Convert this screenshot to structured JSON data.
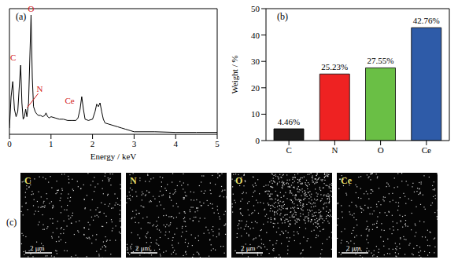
{
  "chart_data": [
    {
      "type": "line",
      "panel": "(a)",
      "x_label": "Energy / keV",
      "x": [
        0,
        0.04,
        0.08,
        0.12,
        0.16,
        0.2,
        0.24,
        0.27,
        0.3,
        0.33,
        0.36,
        0.39,
        0.42,
        0.46,
        0.49,
        0.52,
        0.55,
        0.58,
        0.62,
        0.66,
        0.7,
        0.75,
        0.8,
        0.85,
        0.88,
        0.92,
        0.96,
        1.0,
        1.1,
        1.2,
        1.3,
        1.4,
        1.5,
        1.6,
        1.65,
        1.7,
        1.74,
        1.78,
        1.82,
        1.9,
        2.0,
        2.06,
        2.1,
        2.14,
        2.18,
        2.22,
        2.26,
        2.3,
        2.4,
        2.5,
        2.6,
        2.7,
        2.8,
        2.9,
        3.0,
        3.5,
        4.0,
        4.5,
        5.0
      ],
      "values": [
        5,
        30,
        42,
        20,
        14,
        18,
        40,
        55,
        25,
        12,
        14,
        20,
        14,
        25,
        60,
        95,
        45,
        22,
        18,
        16,
        15,
        15,
        14,
        15,
        17,
        14,
        13,
        14,
        13,
        12,
        12,
        11,
        11,
        11,
        13,
        20,
        30,
        20,
        12,
        11,
        12,
        18,
        24,
        22,
        25,
        18,
        12,
        9,
        8,
        7,
        6,
        5,
        4,
        3,
        2,
        2,
        1.5,
        1.5,
        1.5
      ],
      "color": "#000000",
      "xlim": [
        0,
        5
      ],
      "xticks": [
        0,
        1,
        2,
        3,
        4,
        5
      ],
      "ylim": [
        0,
        100
      ],
      "yticks": [],
      "tick_labels": "x",
      "annotations": [
        {
          "text": "C",
          "x": 0.27
        },
        {
          "text": "O",
          "x": 0.52
        },
        {
          "text": "N",
          "x": 0.39
        },
        {
          "text": "Ce",
          "x": 0.88
        }
      ]
    },
    {
      "type": "bar",
      "panel": "(b)",
      "y_label": "Weight / %",
      "categories": [
        "C",
        "N",
        "O",
        "Ce"
      ],
      "values": [
        4.46,
        25.23,
        27.55,
        42.76
      ],
      "value_labels": [
        "4.46%",
        "25.23%",
        "27.55%",
        "42.76%"
      ],
      "colors": [
        "#1a1a1a",
        "#ee2222",
        "#6abf45",
        "#2e5ba8"
      ],
      "ylim": [
        0,
        50
      ],
      "yticks": [
        0,
        10,
        20,
        30,
        40,
        50
      ],
      "data_labels": true
    }
  ],
  "maps": {
    "panel": "(c)",
    "panels": [
      "C",
      "N",
      "O",
      "Ce"
    ],
    "scale_bar": "2 μm"
  }
}
